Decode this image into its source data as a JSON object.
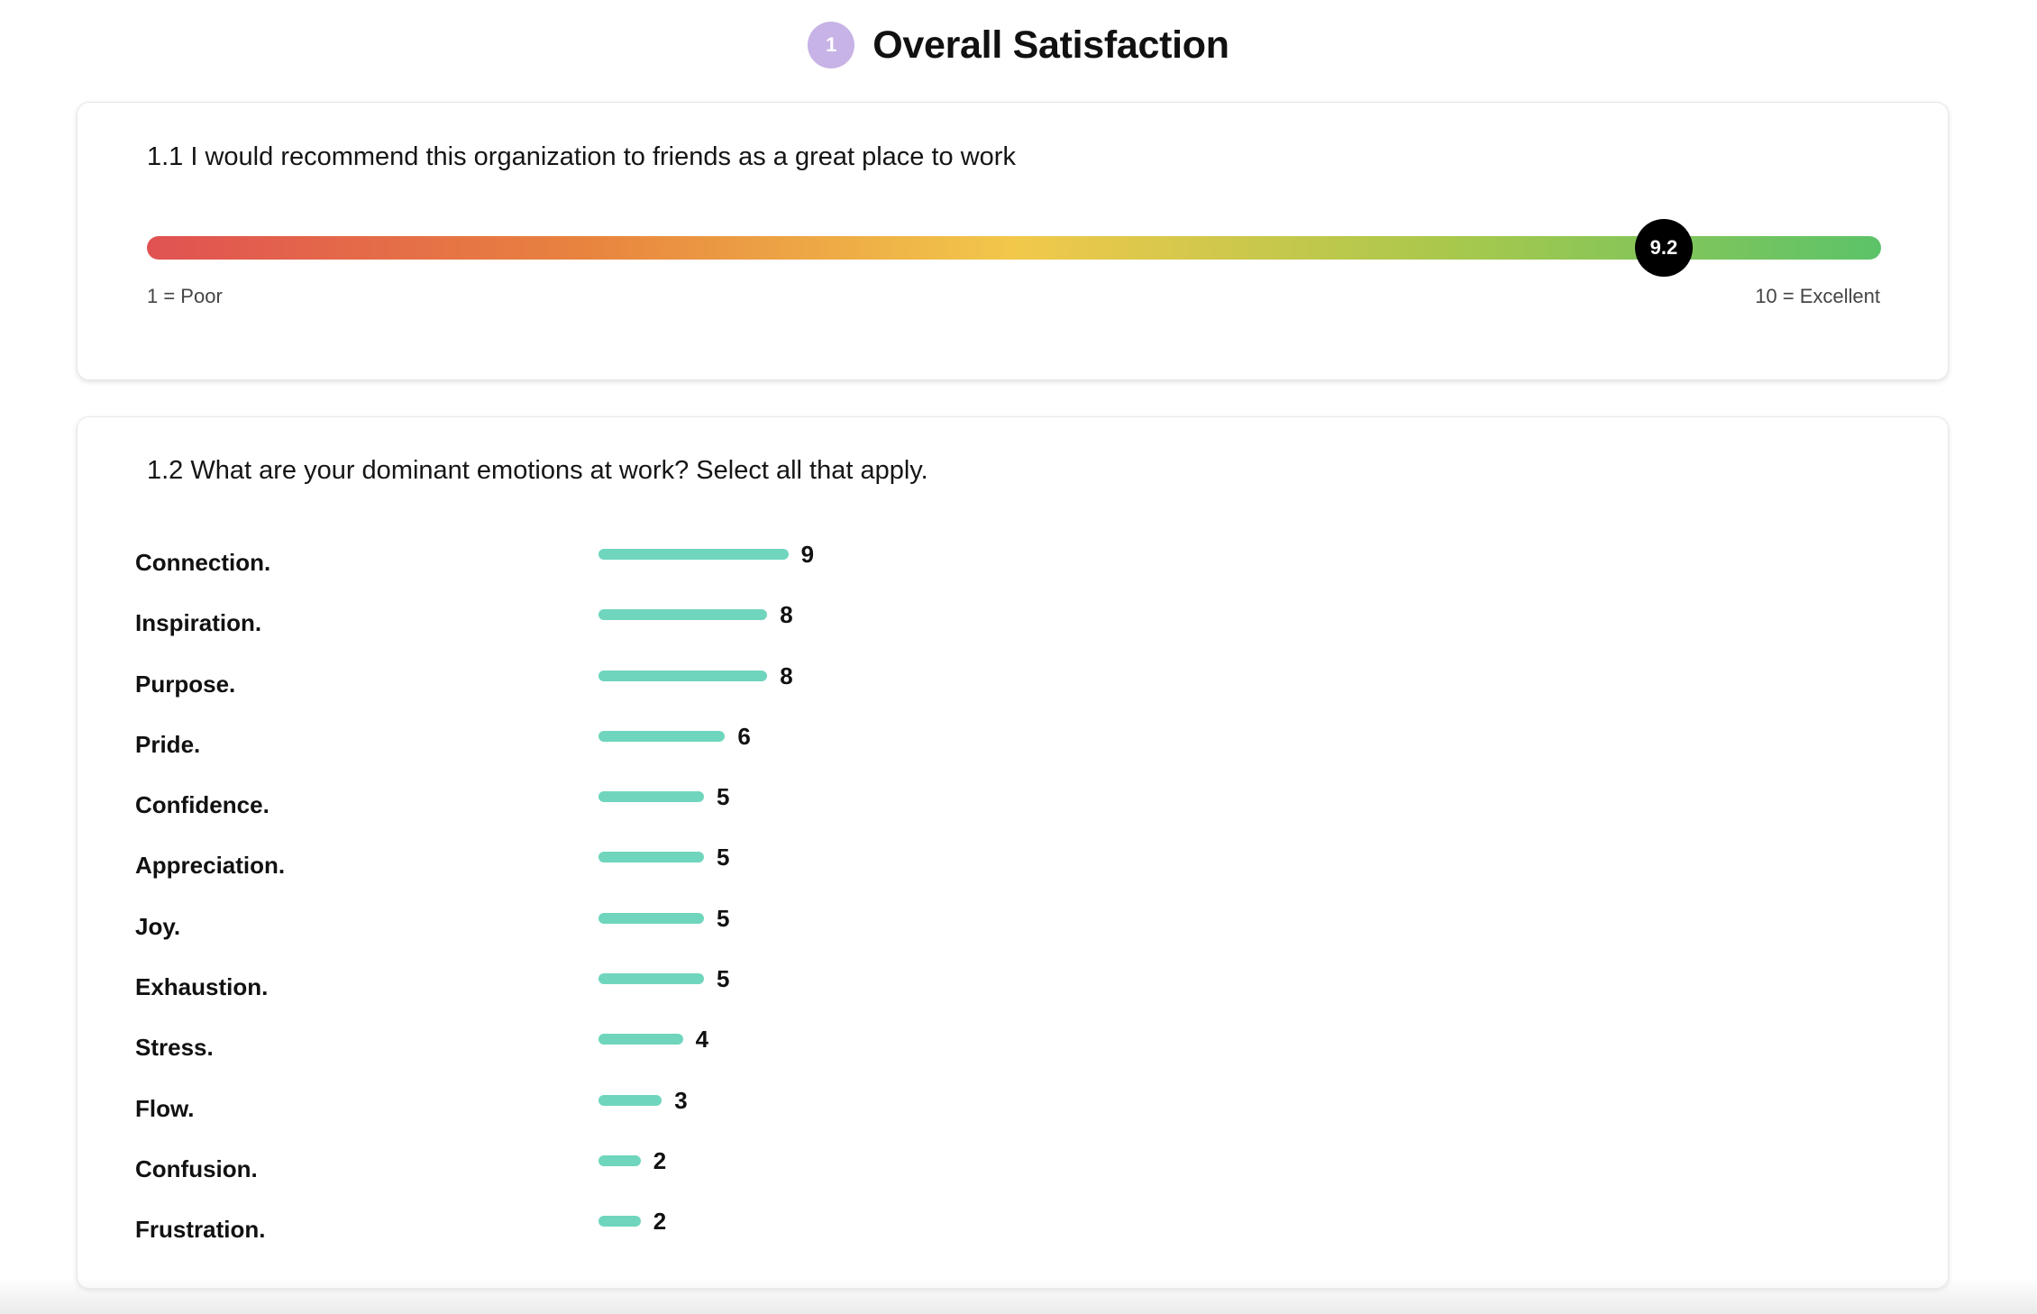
{
  "section": {
    "number": "1",
    "title": "Overall Satisfaction"
  },
  "q1": {
    "question": "1.1 I would recommend this organization to friends as a great place to work",
    "score": 9.2,
    "score_label": "9.2",
    "scale_min": 1,
    "scale_max": 10,
    "min_label": "1 = Poor",
    "max_label": "10 = Excellent",
    "gradient_colors": [
      "#e05252",
      "#e8833f",
      "#f2c84b",
      "#a9c84c",
      "#5cc368"
    ]
  },
  "q2": {
    "question": "1.2 What are your dominant emotions at work? Select all that apply.",
    "bar_color": "#6fd6bd",
    "items": [
      {
        "label": "Connection.",
        "count": 9
      },
      {
        "label": "Inspiration.",
        "count": 8
      },
      {
        "label": "Purpose.",
        "count": 8
      },
      {
        "label": "Pride.",
        "count": 6
      },
      {
        "label": "Confidence.",
        "count": 5
      },
      {
        "label": "Appreciation.",
        "count": 5
      },
      {
        "label": "Joy.",
        "count": 5
      },
      {
        "label": "Exhaustion.",
        "count": 5
      },
      {
        "label": "Stress.",
        "count": 4
      },
      {
        "label": "Flow.",
        "count": 3
      },
      {
        "label": "Confusion.",
        "count": 2
      },
      {
        "label": "Frustration.",
        "count": 2
      }
    ]
  }
}
